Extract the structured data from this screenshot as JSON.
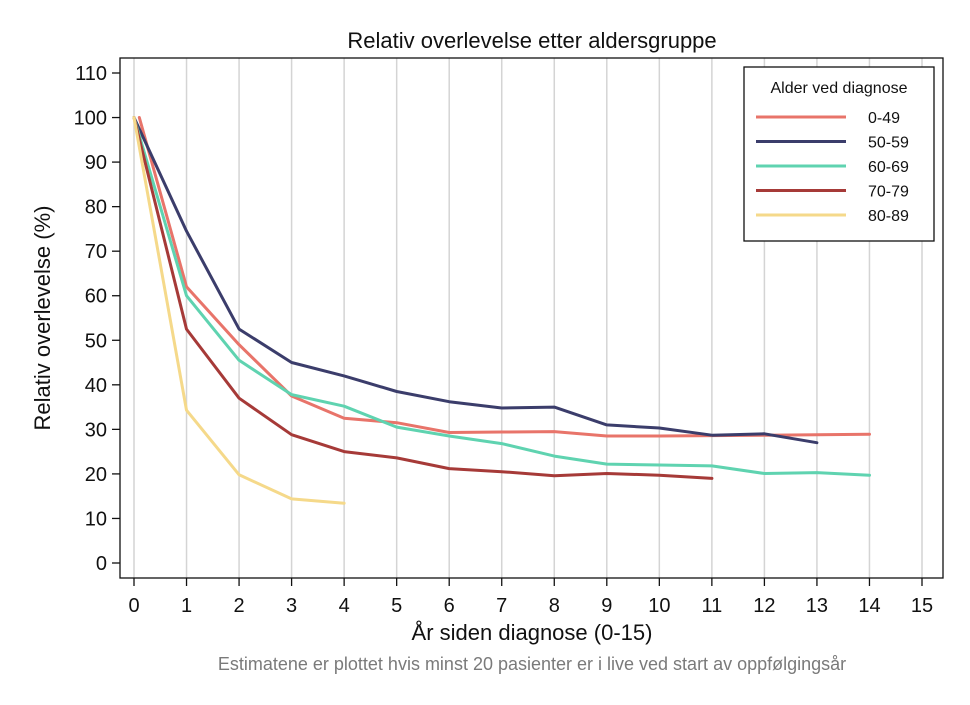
{
  "chart_data": {
    "type": "line",
    "title": "Relativ overlevelse etter aldersgruppe",
    "xlabel": "År siden diagnose (0-15)",
    "ylabel": "Relativ overlevelse (%)",
    "note": "Estimatene er plottet hvis minst 20 pasienter er i live ved start av oppfølgingsår",
    "xlim": [
      0,
      15
    ],
    "ylim": [
      0,
      110
    ],
    "x_ticks": [
      0,
      1,
      2,
      3,
      4,
      5,
      6,
      7,
      8,
      9,
      10,
      11,
      12,
      13,
      14,
      15
    ],
    "y_ticks": [
      0,
      10,
      20,
      30,
      40,
      50,
      60,
      70,
      80,
      90,
      100,
      110
    ],
    "grid": "vertical",
    "legend": {
      "title": "Alder ved diagnose",
      "position": "top-right"
    },
    "series": [
      {
        "name": "0-49",
        "color": "#e8746a",
        "x": [
          0.1,
          1,
          2,
          3,
          4,
          5,
          6,
          7,
          8,
          9,
          10,
          11,
          12,
          13,
          14
        ],
        "y": [
          100,
          62,
          49,
          37.5,
          32.5,
          31.5,
          29.3,
          29.4,
          29.5,
          28.5,
          28.5,
          28.6,
          28.7,
          28.8,
          28.9
        ]
      },
      {
        "name": "50-59",
        "color": "#3b3d6b",
        "x": [
          0,
          1,
          2,
          3,
          4,
          5,
          6,
          7,
          8,
          9,
          10,
          11,
          12,
          13
        ],
        "y": [
          100,
          74.5,
          52.5,
          45,
          42,
          38.5,
          36.2,
          34.8,
          35,
          31,
          30.3,
          28.7,
          29,
          27
        ]
      },
      {
        "name": "60-69",
        "color": "#5fd3b0",
        "x": [
          0,
          1,
          2,
          3,
          4,
          5,
          6,
          7,
          8,
          9,
          10,
          11,
          12,
          13,
          14
        ],
        "y": [
          100,
          60,
          45.5,
          37.8,
          35.2,
          30.5,
          28.5,
          26.8,
          24,
          22.2,
          22,
          21.8,
          20.1,
          20.3,
          19.7
        ]
      },
      {
        "name": "70-79",
        "color": "#a63a38",
        "x": [
          0,
          1,
          2,
          3,
          4,
          5,
          6,
          7,
          8,
          9,
          10,
          11
        ],
        "y": [
          100,
          52.5,
          37,
          28.8,
          25,
          23.6,
          21.2,
          20.5,
          19.6,
          20.1,
          19.7,
          19
        ]
      },
      {
        "name": "80-89",
        "color": "#f5d98a",
        "x": [
          0,
          1,
          2,
          3,
          4
        ],
        "y": [
          100,
          34.3,
          19.8,
          14.4,
          13.4
        ]
      }
    ]
  }
}
